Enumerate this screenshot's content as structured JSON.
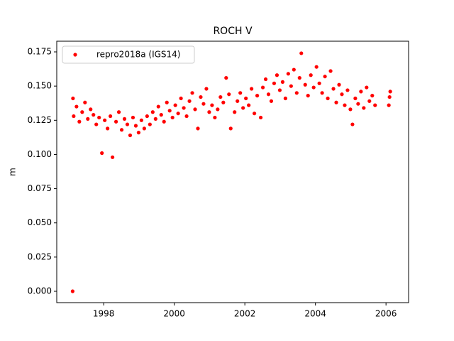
{
  "chart_data": {
    "type": "scatter",
    "title": "ROCH V",
    "y_label": "m",
    "xlim": [
      1996.67,
      2006.64
    ],
    "xticks": [
      1998,
      2000,
      2002,
      2004,
      2006
    ],
    "ylim": [
      -0.0083,
      0.1828
    ],
    "yticks": [
      {
        "value": 0,
        "label": "0.000"
      },
      0.025,
      {
        "value": 0.05,
        "label": "0.050"
      },
      0.075,
      {
        "value": 0.1,
        "label": "0.100"
      },
      0.125,
      {
        "value": 0.15,
        "label": "0.150"
      },
      0.175
    ],
    "grid": false,
    "legend": "upper left",
    "series": [
      {
        "name": "repro2018a (IGS14)",
        "color": "#ff0000",
        "x": [
          1997.12,
          1997.13,
          1997.15,
          1997.23,
          1997.31,
          1997.39,
          1997.47,
          1997.55,
          1997.63,
          1997.71,
          1997.79,
          1997.87,
          1997.95,
          1998.03,
          1998.11,
          1998.19,
          1998.25,
          1998.35,
          1998.43,
          1998.51,
          1998.59,
          1998.67,
          1998.75,
          1998.83,
          1998.91,
          1998.99,
          1999.07,
          1999.15,
          1999.23,
          1999.31,
          1999.39,
          1999.47,
          1999.55,
          1999.63,
          1999.71,
          1999.79,
          1999.87,
          1999.95,
          2000.03,
          2000.11,
          2000.19,
          2000.27,
          2000.35,
          2000.43,
          2000.51,
          2000.59,
          2000.67,
          2000.75,
          2000.83,
          2000.91,
          2000.99,
          2001.07,
          2001.15,
          2001.23,
          2001.31,
          2001.39,
          2001.47,
          2001.55,
          2001.6,
          2001.71,
          2001.79,
          2001.87,
          2001.95,
          2002.03,
          2002.11,
          2002.19,
          2002.27,
          2002.35,
          2002.45,
          2002.51,
          2002.59,
          2002.67,
          2002.75,
          2002.83,
          2002.91,
          2002.99,
          2003.07,
          2003.15,
          2003.23,
          2003.31,
          2003.39,
          2003.47,
          2003.55,
          2003.6,
          2003.71,
          2003.79,
          2003.87,
          2003.95,
          2004.03,
          2004.11,
          2004.19,
          2004.27,
          2004.35,
          2004.43,
          2004.51,
          2004.59,
          2004.67,
          2004.75,
          2004.83,
          2004.91,
          2004.99,
          2005.05,
          2005.13,
          2005.21,
          2005.29,
          2005.37,
          2005.45,
          2005.53,
          2005.61,
          2005.69,
          2006.08,
          2006.1,
          2006.12
        ],
        "values": [
          0.0,
          0.141,
          0.128,
          0.135,
          0.124,
          0.131,
          0.138,
          0.126,
          0.133,
          0.129,
          0.122,
          0.127,
          0.101,
          0.125,
          0.119,
          0.128,
          0.098,
          0.124,
          0.131,
          0.118,
          0.126,
          0.122,
          0.114,
          0.127,
          0.121,
          0.116,
          0.125,
          0.119,
          0.128,
          0.122,
          0.131,
          0.126,
          0.135,
          0.129,
          0.124,
          0.138,
          0.132,
          0.127,
          0.136,
          0.13,
          0.141,
          0.134,
          0.128,
          0.139,
          0.145,
          0.133,
          0.119,
          0.142,
          0.137,
          0.148,
          0.131,
          0.136,
          0.127,
          0.133,
          0.142,
          0.138,
          0.156,
          0.144,
          0.119,
          0.131,
          0.139,
          0.145,
          0.134,
          0.141,
          0.136,
          0.148,
          0.13,
          0.143,
          0.127,
          0.149,
          0.155,
          0.144,
          0.139,
          0.152,
          0.158,
          0.147,
          0.153,
          0.141,
          0.159,
          0.15,
          0.162,
          0.145,
          0.156,
          0.174,
          0.151,
          0.143,
          0.158,
          0.149,
          0.164,
          0.152,
          0.145,
          0.157,
          0.141,
          0.161,
          0.148,
          0.138,
          0.151,
          0.144,
          0.136,
          0.147,
          0.133,
          0.122,
          0.141,
          0.137,
          0.146,
          0.134,
          0.149,
          0.139,
          0.143,
          0.136,
          0.136,
          0.142,
          0.146
        ]
      }
    ]
  }
}
